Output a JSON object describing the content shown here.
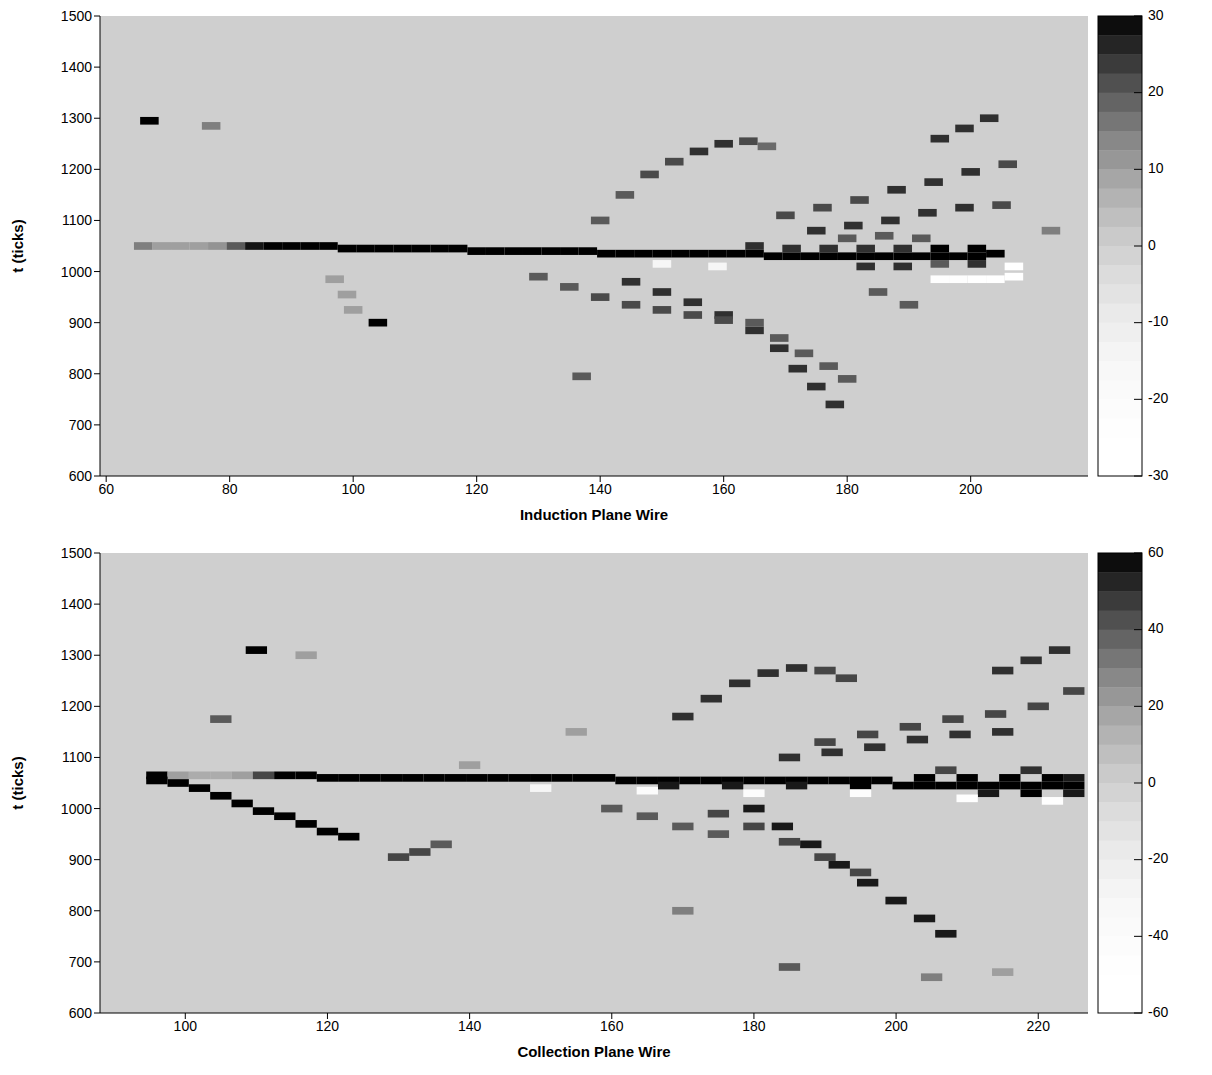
{
  "chart_data": [
    {
      "type": "heatmap",
      "x_label": "Induction Plane Wire",
      "y_label": "t (ticks)",
      "xlim": [
        59,
        219
      ],
      "xticks": [
        60,
        80,
        100,
        120,
        140,
        160,
        180,
        200
      ],
      "ylim": [
        600,
        1500
      ],
      "yticks": [
        600,
        700,
        800,
        900,
        1000,
        1100,
        1200,
        1300,
        1400,
        1500
      ],
      "zlim": [
        -30,
        30
      ],
      "zticks": [
        -30,
        -20,
        -10,
        0,
        10,
        20,
        30
      ],
      "cell_width": 3,
      "cell_height": 15,
      "cells": [
        [
          66,
          1050,
          15
        ],
        [
          69,
          1050,
          10
        ],
        [
          72,
          1050,
          10
        ],
        [
          75,
          1050,
          10
        ],
        [
          78,
          1050,
          12
        ],
        [
          81,
          1050,
          20
        ],
        [
          84,
          1050,
          28
        ],
        [
          87,
          1050,
          30
        ],
        [
          90,
          1050,
          30
        ],
        [
          93,
          1050,
          30
        ],
        [
          96,
          1050,
          30
        ],
        [
          99,
          1045,
          30
        ],
        [
          102,
          1045,
          30
        ],
        [
          105,
          1045,
          30
        ],
        [
          108,
          1045,
          30
        ],
        [
          111,
          1045,
          30
        ],
        [
          114,
          1045,
          30
        ],
        [
          117,
          1045,
          30
        ],
        [
          120,
          1040,
          30
        ],
        [
          123,
          1040,
          30
        ],
        [
          126,
          1040,
          30
        ],
        [
          129,
          1040,
          30
        ],
        [
          132,
          1040,
          30
        ],
        [
          135,
          1040,
          30
        ],
        [
          138,
          1040,
          30
        ],
        [
          141,
          1035,
          30
        ],
        [
          144,
          1035,
          30
        ],
        [
          147,
          1035,
          30
        ],
        [
          150,
          1035,
          30
        ],
        [
          153,
          1035,
          30
        ],
        [
          156,
          1035,
          30
        ],
        [
          159,
          1035,
          30
        ],
        [
          162,
          1035,
          30
        ],
        [
          165,
          1035,
          30
        ],
        [
          168,
          1030,
          30
        ],
        [
          171,
          1030,
          30
        ],
        [
          174,
          1030,
          30
        ],
        [
          177,
          1030,
          30
        ],
        [
          180,
          1030,
          30
        ],
        [
          183,
          1030,
          30
        ],
        [
          186,
          1030,
          30
        ],
        [
          189,
          1030,
          30
        ],
        [
          192,
          1030,
          30
        ],
        [
          195,
          1030,
          30
        ],
        [
          198,
          1030,
          30
        ],
        [
          201,
          1030,
          30
        ],
        [
          204,
          1035,
          30
        ],
        [
          165,
          1050,
          25
        ],
        [
          171,
          1045,
          25
        ],
        [
          177,
          1045,
          25
        ],
        [
          183,
          1045,
          25
        ],
        [
          189,
          1045,
          25
        ],
        [
          195,
          1045,
          30
        ],
        [
          201,
          1045,
          30
        ],
        [
          183,
          1010,
          25
        ],
        [
          189,
          1010,
          25
        ],
        [
          195,
          1015,
          20
        ],
        [
          201,
          1015,
          25
        ],
        [
          180,
          1065,
          20
        ],
        [
          186,
          1070,
          20
        ],
        [
          192,
          1065,
          20
        ],
        [
          195,
          985,
          -25
        ],
        [
          198,
          985,
          -25
        ],
        [
          201,
          985,
          -28
        ],
        [
          204,
          985,
          -28
        ],
        [
          207,
          990,
          -30
        ],
        [
          207,
          1010,
          -30
        ],
        [
          150,
          1015,
          -15
        ],
        [
          159,
          1010,
          -15
        ],
        [
          140,
          1100,
          20
        ],
        [
          144,
          1150,
          20
        ],
        [
          148,
          1190,
          22
        ],
        [
          152,
          1215,
          22
        ],
        [
          156,
          1235,
          25
        ],
        [
          160,
          1250,
          25
        ],
        [
          164,
          1255,
          22
        ],
        [
          167,
          1245,
          18
        ],
        [
          195,
          1260,
          25
        ],
        [
          199,
          1280,
          25
        ],
        [
          203,
          1300,
          25
        ],
        [
          170,
          1110,
          22
        ],
        [
          176,
          1125,
          22
        ],
        [
          182,
          1140,
          22
        ],
        [
          188,
          1160,
          25
        ],
        [
          194,
          1175,
          25
        ],
        [
          200,
          1195,
          25
        ],
        [
          206,
          1210,
          22
        ],
        [
          175,
          1080,
          25
        ],
        [
          181,
          1090,
          25
        ],
        [
          187,
          1100,
          25
        ],
        [
          193,
          1115,
          25
        ],
        [
          199,
          1125,
          25
        ],
        [
          205,
          1130,
          22
        ],
        [
          145,
          980,
          25
        ],
        [
          150,
          960,
          25
        ],
        [
          155,
          940,
          25
        ],
        [
          160,
          915,
          25
        ],
        [
          165,
          885,
          25
        ],
        [
          169,
          850,
          25
        ],
        [
          172,
          810,
          25
        ],
        [
          175,
          775,
          25
        ],
        [
          178,
          740,
          25
        ],
        [
          165,
          900,
          20
        ],
        [
          169,
          870,
          20
        ],
        [
          173,
          840,
          20
        ],
        [
          177,
          815,
          20
        ],
        [
          180,
          790,
          20
        ],
        [
          130,
          990,
          20
        ],
        [
          135,
          970,
          20
        ],
        [
          140,
          950,
          22
        ],
        [
          145,
          935,
          22
        ],
        [
          150,
          925,
          22
        ],
        [
          155,
          915,
          22
        ],
        [
          160,
          905,
          22
        ],
        [
          185,
          960,
          20
        ],
        [
          190,
          935,
          20
        ],
        [
          97,
          985,
          10
        ],
        [
          99,
          955,
          10
        ],
        [
          100,
          925,
          10
        ],
        [
          67,
          1295,
          30
        ],
        [
          104,
          900,
          30
        ],
        [
          137,
          795,
          20
        ],
        [
          77,
          1285,
          15
        ],
        [
          213,
          1080,
          15
        ]
      ]
    },
    {
      "type": "heatmap",
      "x_label": "Collection Plane Wire",
      "y_label": "t (ticks)",
      "xlim": [
        88,
        227
      ],
      "xticks": [
        100,
        120,
        140,
        160,
        180,
        200,
        220
      ],
      "ylim": [
        600,
        1500
      ],
      "yticks": [
        600,
        700,
        800,
        900,
        1000,
        1100,
        1200,
        1300,
        1400,
        1500
      ],
      "zlim": [
        -60,
        60
      ],
      "zticks": [
        -60,
        -40,
        -20,
        0,
        20,
        40,
        60
      ],
      "cell_width": 3,
      "cell_height": 15,
      "cells": [
        [
          96,
          1065,
          60
        ],
        [
          99,
          1065,
          20
        ],
        [
          102,
          1065,
          15
        ],
        [
          105,
          1065,
          15
        ],
        [
          108,
          1065,
          20
        ],
        [
          111,
          1065,
          45
        ],
        [
          114,
          1065,
          60
        ],
        [
          117,
          1065,
          60
        ],
        [
          120,
          1060,
          60
        ],
        [
          123,
          1060,
          60
        ],
        [
          126,
          1060,
          60
        ],
        [
          129,
          1060,
          60
        ],
        [
          132,
          1060,
          60
        ],
        [
          135,
          1060,
          60
        ],
        [
          138,
          1060,
          60
        ],
        [
          141,
          1060,
          60
        ],
        [
          144,
          1060,
          60
        ],
        [
          147,
          1060,
          60
        ],
        [
          150,
          1060,
          60
        ],
        [
          153,
          1060,
          60
        ],
        [
          156,
          1060,
          60
        ],
        [
          159,
          1060,
          60
        ],
        [
          162,
          1055,
          60
        ],
        [
          165,
          1055,
          60
        ],
        [
          168,
          1055,
          60
        ],
        [
          171,
          1055,
          60
        ],
        [
          174,
          1055,
          60
        ],
        [
          177,
          1055,
          60
        ],
        [
          180,
          1055,
          60
        ],
        [
          183,
          1055,
          60
        ],
        [
          186,
          1055,
          60
        ],
        [
          189,
          1055,
          60
        ],
        [
          192,
          1055,
          60
        ],
        [
          195,
          1055,
          60
        ],
        [
          198,
          1055,
          60
        ],
        [
          201,
          1045,
          60
        ],
        [
          204,
          1045,
          60
        ],
        [
          207,
          1045,
          60
        ],
        [
          210,
          1045,
          60
        ],
        [
          213,
          1045,
          60
        ],
        [
          216,
          1045,
          60
        ],
        [
          219,
          1045,
          60
        ],
        [
          222,
          1045,
          60
        ],
        [
          225,
          1045,
          60
        ],
        [
          168,
          1045,
          55
        ],
        [
          177,
          1045,
          55
        ],
        [
          186,
          1045,
          55
        ],
        [
          195,
          1045,
          60
        ],
        [
          204,
          1060,
          60
        ],
        [
          210,
          1060,
          60
        ],
        [
          216,
          1060,
          60
        ],
        [
          222,
          1060,
          60
        ],
        [
          225,
          1060,
          55
        ],
        [
          213,
          1030,
          55
        ],
        [
          219,
          1030,
          60
        ],
        [
          225,
          1030,
          55
        ],
        [
          207,
          1075,
          45
        ],
        [
          219,
          1075,
          50
        ],
        [
          150,
          1040,
          -30
        ],
        [
          165,
          1035,
          -40
        ],
        [
          180,
          1030,
          -40
        ],
        [
          195,
          1030,
          -45
        ],
        [
          210,
          1020,
          -50
        ],
        [
          222,
          1015,
          -50
        ],
        [
          96,
          1055,
          60
        ],
        [
          99,
          1050,
          60
        ],
        [
          102,
          1040,
          60
        ],
        [
          105,
          1025,
          60
        ],
        [
          108,
          1010,
          60
        ],
        [
          111,
          995,
          60
        ],
        [
          114,
          985,
          60
        ],
        [
          117,
          970,
          60
        ],
        [
          120,
          955,
          60
        ],
        [
          123,
          945,
          60
        ],
        [
          170,
          1180,
          50
        ],
        [
          174,
          1215,
          50
        ],
        [
          178,
          1245,
          50
        ],
        [
          182,
          1265,
          50
        ],
        [
          186,
          1275,
          50
        ],
        [
          190,
          1270,
          45
        ],
        [
          193,
          1255,
          45
        ],
        [
          215,
          1270,
          50
        ],
        [
          219,
          1290,
          50
        ],
        [
          223,
          1310,
          50
        ],
        [
          190,
          1130,
          45
        ],
        [
          196,
          1145,
          45
        ],
        [
          202,
          1160,
          45
        ],
        [
          208,
          1175,
          45
        ],
        [
          214,
          1185,
          45
        ],
        [
          220,
          1200,
          45
        ],
        [
          225,
          1230,
          45
        ],
        [
          185,
          1100,
          50
        ],
        [
          191,
          1110,
          50
        ],
        [
          197,
          1120,
          50
        ],
        [
          203,
          1135,
          50
        ],
        [
          209,
          1145,
          50
        ],
        [
          215,
          1150,
          50
        ],
        [
          180,
          1000,
          55
        ],
        [
          184,
          965,
          55
        ],
        [
          188,
          930,
          55
        ],
        [
          192,
          890,
          55
        ],
        [
          196,
          855,
          55
        ],
        [
          200,
          820,
          55
        ],
        [
          204,
          785,
          55
        ],
        [
          207,
          755,
          55
        ],
        [
          175,
          990,
          45
        ],
        [
          180,
          965,
          45
        ],
        [
          185,
          935,
          45
        ],
        [
          190,
          905,
          45
        ],
        [
          195,
          875,
          45
        ],
        [
          160,
          1000,
          40
        ],
        [
          165,
          985,
          40
        ],
        [
          170,
          965,
          40
        ],
        [
          175,
          950,
          40
        ],
        [
          130,
          905,
          45
        ],
        [
          133,
          915,
          45
        ],
        [
          136,
          930,
          40
        ],
        [
          110,
          1310,
          60
        ],
        [
          105,
          1175,
          40
        ],
        [
          117,
          1300,
          20
        ],
        [
          170,
          800,
          30
        ],
        [
          185,
          690,
          40
        ],
        [
          205,
          670,
          30
        ],
        [
          215,
          680,
          20
        ],
        [
          140,
          1085,
          20
        ],
        [
          155,
          1150,
          20
        ]
      ]
    }
  ]
}
